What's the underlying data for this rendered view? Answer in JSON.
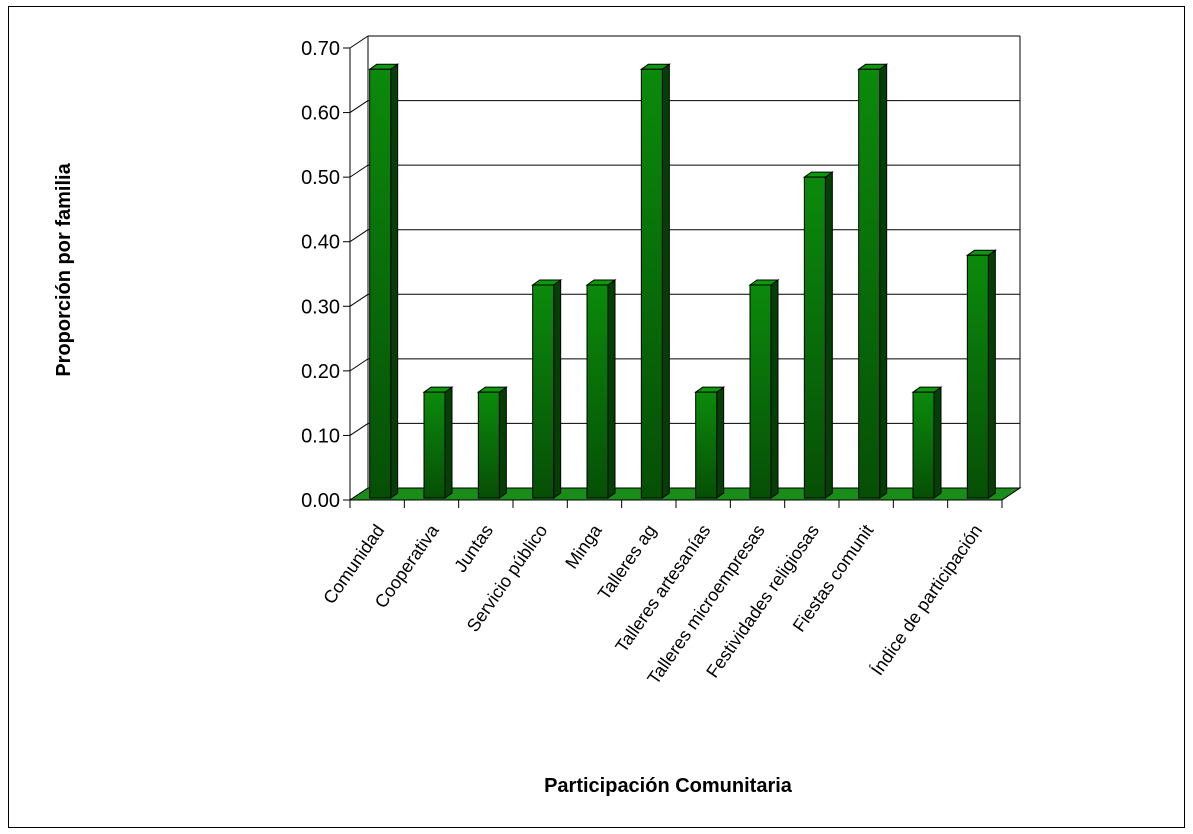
{
  "chart_data": {
    "type": "bar",
    "style": "3d",
    "title": "",
    "xlabel": "Participación Comunitaria",
    "ylabel": "Proporción por familia",
    "ylim": [
      0,
      0.7
    ],
    "yticks": [
      "0.00",
      "0.10",
      "0.20",
      "0.30",
      "0.40",
      "0.50",
      "0.60",
      "0.70"
    ],
    "grid": true,
    "legend": "none",
    "bar_color": "#0a7a0a",
    "floor_color": "#1a8c1a",
    "categories": [
      "Comunidad",
      "Cooperativa",
      "Juntas",
      "Servicio público",
      "Minga",
      "Talleres ag",
      "Talleres artesanías",
      "Talleres microempresas",
      "Festividades religiosas",
      "Fiestas comunit",
      "",
      "Índice de participación"
    ],
    "values": [
      0.667,
      0.167,
      0.167,
      0.333,
      0.333,
      0.667,
      0.167,
      0.333,
      0.5,
      0.667,
      0.167,
      0.379
    ]
  }
}
